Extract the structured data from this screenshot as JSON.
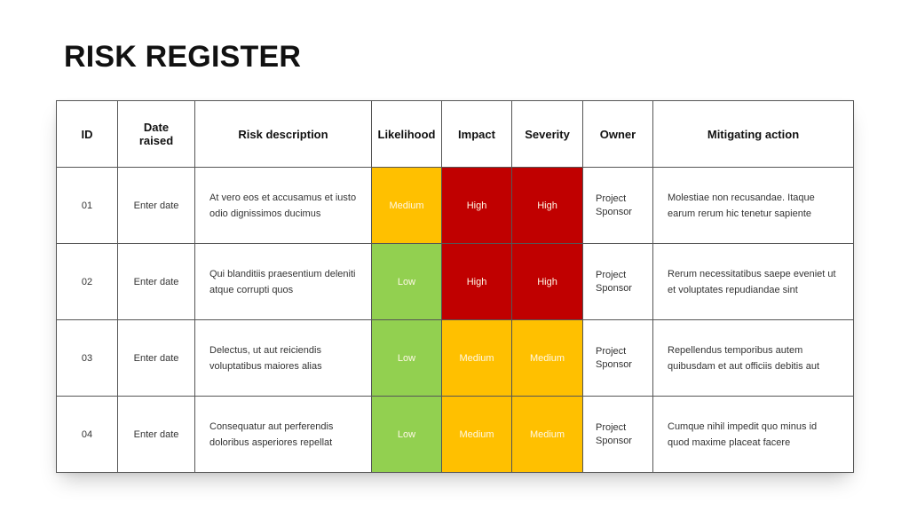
{
  "title": "RISK REGISTER",
  "headers": {
    "id": "ID",
    "date_line1": "Date",
    "date_line2": "raised",
    "description": "Risk description",
    "likelihood": "Likelihood",
    "impact": "Impact",
    "severity": "Severity",
    "owner": "Owner",
    "mitigation": "Mitigating action"
  },
  "level_colors": {
    "High": "#c00000",
    "Medium": "#ffc000",
    "Low": "#92d050"
  },
  "rows": [
    {
      "id": "01",
      "date": "Enter date",
      "description": "At vero eos et accusamus et iusto odio dignissimos ducimus",
      "likelihood": "Medium",
      "impact": "High",
      "severity": "High",
      "owner_line1": "Project",
      "owner_line2": "Sponsor",
      "mitigation": "Molestiae non recusandae. Itaque earum rerum hic tenetur sapiente"
    },
    {
      "id": "02",
      "date": "Enter date",
      "description": "Qui blanditiis praesentium deleniti atque corrupti quos",
      "likelihood": "Low",
      "impact": "High",
      "severity": "High",
      "owner_line1": "Project",
      "owner_line2": "Sponsor",
      "mitigation": "Rerum necessitatibus saepe eveniet ut et voluptates repudiandae sint"
    },
    {
      "id": "03",
      "date": "Enter date",
      "description": "Delectus, ut aut reiciendis voluptatibus maiores alias",
      "likelihood": "Low",
      "impact": "Medium",
      "severity": "Medium",
      "owner_line1": "Project",
      "owner_line2": "Sponsor",
      "mitigation": "Repellendus temporibus autem quibusdam et aut officiis debitis aut"
    },
    {
      "id": "04",
      "date": "Enter date",
      "description": "Consequatur aut perferendis doloribus asperiores repellat",
      "likelihood": "Low",
      "impact": "Medium",
      "severity": "Medium",
      "owner_line1": "Project",
      "owner_line2": "Sponsor",
      "mitigation": "Cumque nihil impedit quo minus id quod maxime placeat facere"
    }
  ]
}
